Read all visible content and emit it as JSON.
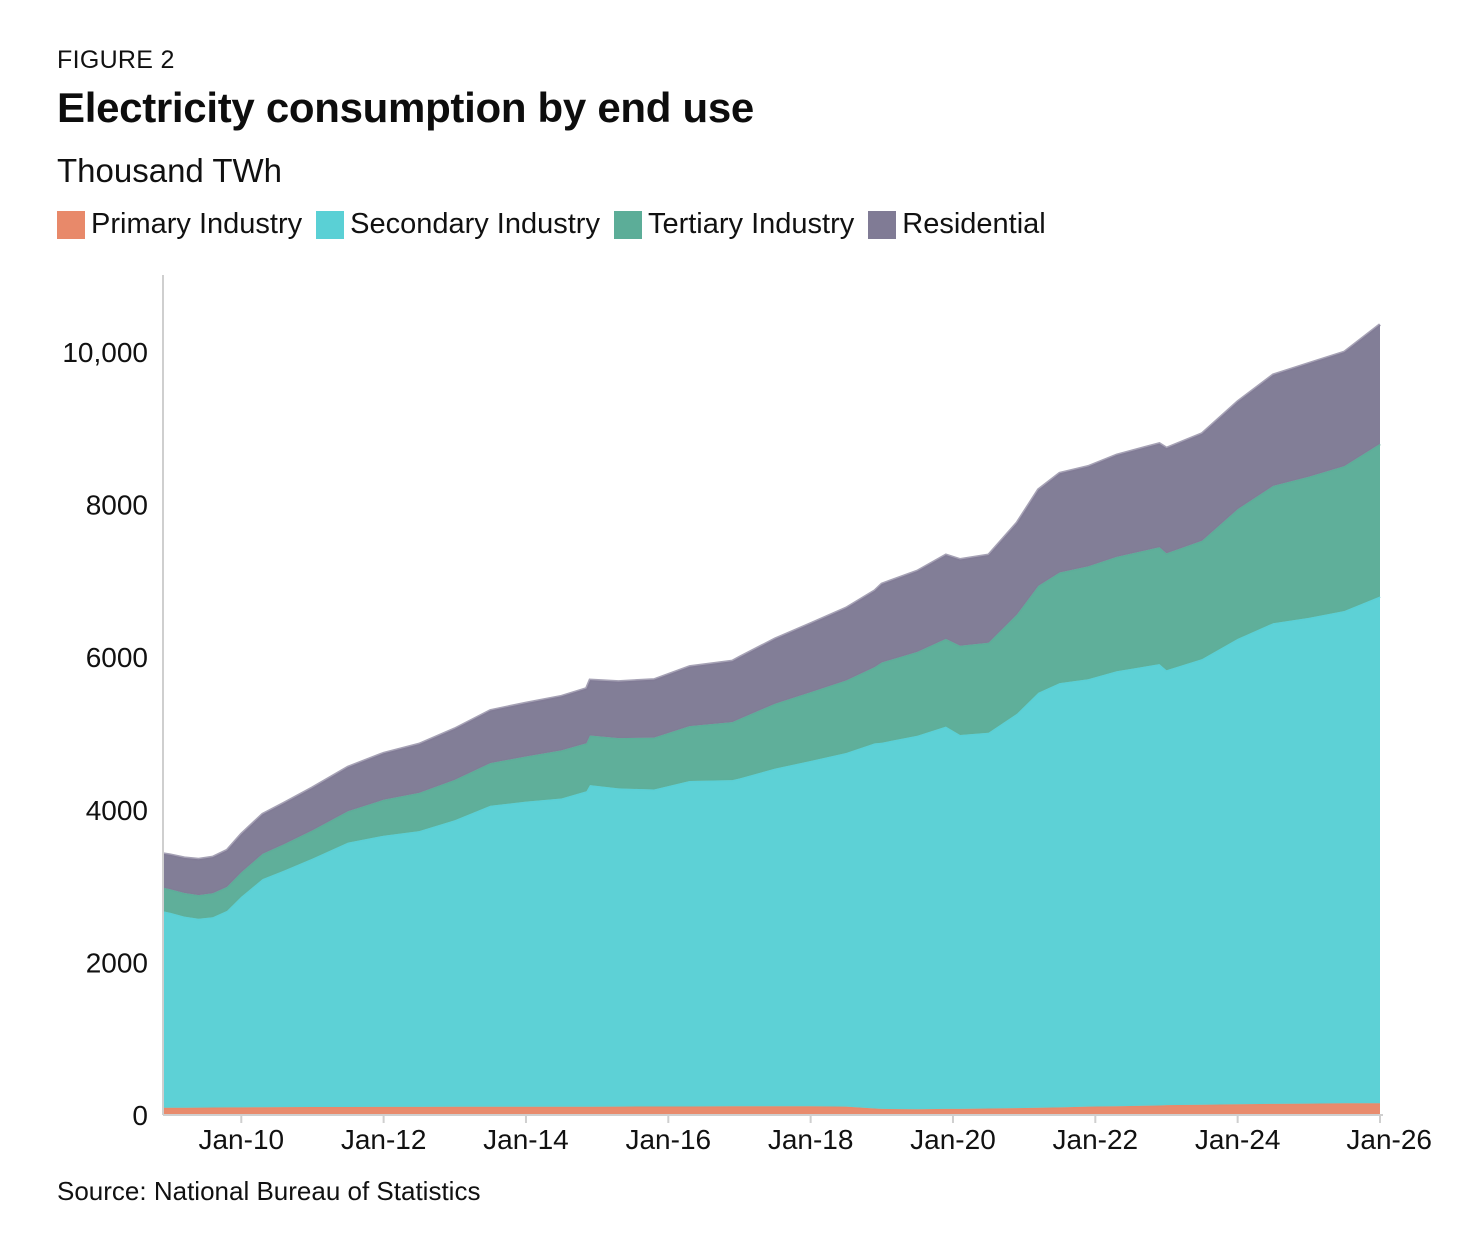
{
  "header": {
    "kicker": "FIGURE 2",
    "title": "Electricity consumption by end use",
    "subtitle": "Thousand TWh"
  },
  "footer": {
    "source": "Source: National Bureau of Statistics"
  },
  "chart_data": {
    "type": "area",
    "stacked": true,
    "title": "Electricity consumption by end use",
    "ylabel": "Thousand TWh",
    "xlim": [
      2008.9,
      2026.0
    ],
    "ylim": [
      0,
      11000
    ],
    "yticks": [
      0,
      2000,
      4000,
      6000,
      8000,
      10000
    ],
    "ytick_labels": [
      "0",
      "2000",
      "4000",
      "6000",
      "8000",
      "10,000"
    ],
    "xticks": [
      2010,
      2012,
      2014,
      2016,
      2018,
      2020,
      2022,
      2024,
      2026
    ],
    "xtick_labels": [
      "Jan-10",
      "Jan-12",
      "Jan-14",
      "Jan-16",
      "Jan-18",
      "Jan-20",
      "Jan-22",
      "Jan-24",
      "Jan-26"
    ],
    "legend_position": "top-left",
    "grid": false,
    "x": [
      2008.9,
      2009.0,
      2009.2,
      2009.4,
      2009.6,
      2009.8,
      2010.0,
      2010.3,
      2010.6,
      2011.0,
      2011.5,
      2012.0,
      2012.5,
      2013.0,
      2013.5,
      2014.0,
      2014.5,
      2014.85,
      2014.9,
      2015.3,
      2015.8,
      2016.3,
      2016.9,
      2017.0,
      2017.5,
      2018.0,
      2018.5,
      2018.9,
      2019.0,
      2019.5,
      2019.9,
      2020.1,
      2020.5,
      2020.9,
      2021.2,
      2021.5,
      2021.9,
      2022.3,
      2022.9,
      2023.0,
      2023.5,
      2024.0,
      2024.5,
      2025.0,
      2025.5,
      2026.0
    ],
    "series": [
      {
        "name": "Primary Industry",
        "color": "#e8896a",
        "values": [
          95,
          95,
          95,
          97,
          98,
          100,
          100,
          102,
          103,
          105,
          105,
          106,
          106,
          107,
          107,
          108,
          108,
          108,
          109,
          110,
          111,
          112,
          114,
          115,
          115,
          115,
          110,
          85,
          80,
          75,
          80,
          80,
          85,
          90,
          95,
          100,
          110,
          115,
          125,
          130,
          135,
          140,
          145,
          150,
          155,
          155
        ]
      },
      {
        "name": "Secondary Industry",
        "color": "#5ad0d5",
        "values": [
          2575,
          2555,
          2505,
          2475,
          2495,
          2575,
          2760,
          2990,
          3100,
          3255,
          3465,
          3555,
          3615,
          3755,
          3945,
          4000,
          4040,
          4135,
          4215,
          4170,
          4155,
          4265,
          4275,
          4295,
          4425,
          4525,
          4635,
          4785,
          4800,
          4895,
          5010,
          4900,
          4925,
          5170,
          5440,
          5560,
          5600,
          5700,
          5785,
          5700,
          5840,
          6100,
          6300,
          6365,
          6450,
          6640
        ]
      },
      {
        "name": "Tertiary Industry",
        "color": "#5cad98",
        "values": [
          310,
          310,
          310,
          310,
          312,
          315,
          320,
          330,
          345,
          370,
          410,
          470,
          500,
          530,
          560,
          590,
          630,
          630,
          650,
          660,
          680,
          720,
          760,
          780,
          850,
          900,
          950,
          1000,
          1050,
          1100,
          1150,
          1170,
          1180,
          1300,
          1400,
          1450,
          1480,
          1500,
          1530,
          1530,
          1550,
          1700,
          1800,
          1850,
          1900,
          2000
        ]
      },
      {
        "name": "Residential",
        "color": "#807b95",
        "values": [
          445,
          450,
          460,
          470,
          475,
          480,
          500,
          520,
          540,
          560,
          580,
          610,
          640,
          670,
          690,
          700,
          710,
          717,
          726,
          740,
          760,
          780,
          800,
          810,
          850,
          900,
          950,
          1000,
          1030,
          1060,
          1100,
          1130,
          1150,
          1200,
          1260,
          1300,
          1310,
          1335,
          1360,
          1380,
          1405,
          1410,
          1455,
          1485,
          1495,
          1565
        ]
      }
    ]
  }
}
